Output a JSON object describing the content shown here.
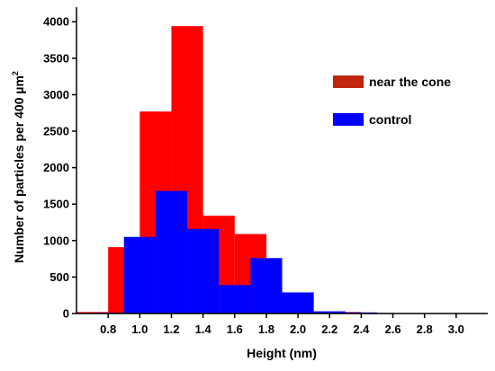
{
  "chart_data": {
    "type": "bar",
    "xlabel": "Height (nm)",
    "ylabel": "Number of particles per 400 µm",
    "ylabel_superscript": "2",
    "ylim": [
      0,
      4200
    ],
    "yticks": [
      0,
      500,
      1000,
      1500,
      2000,
      2500,
      3000,
      3500,
      4000
    ],
    "x_ticks": [
      "0.8",
      "1.0",
      "1.2",
      "1.4",
      "1.6",
      "1.8",
      "2.0",
      "2.2",
      "2.4",
      "2.6",
      "2.8",
      "3.0"
    ],
    "xlim": [
      0.6,
      3.2
    ],
    "bin_width": 0.2,
    "series": [
      {
        "name": "near the cone",
        "color": "#ff0000",
        "bins": [
          {
            "start": 0.6,
            "value": 20
          },
          {
            "start": 0.8,
            "value": 910
          },
          {
            "start": 1.0,
            "value": 2770
          },
          {
            "start": 1.2,
            "value": 3940
          },
          {
            "start": 1.4,
            "value": 1340
          },
          {
            "start": 1.6,
            "value": 1090
          },
          {
            "start": 1.8,
            "value": 220
          },
          {
            "start": 2.0,
            "value": 25
          },
          {
            "start": 2.2,
            "value": 20
          },
          {
            "start": 2.4,
            "value": 8
          }
        ]
      },
      {
        "name": "control",
        "color": "#0000ff",
        "bins": [
          {
            "start": 0.7,
            "value": 10
          },
          {
            "start": 0.9,
            "value": 1050
          },
          {
            "start": 1.1,
            "value": 1680
          },
          {
            "start": 1.3,
            "value": 1160
          },
          {
            "start": 1.5,
            "value": 390
          },
          {
            "start": 1.7,
            "value": 760
          },
          {
            "start": 1.9,
            "value": 290
          },
          {
            "start": 2.1,
            "value": 30
          },
          {
            "start": 2.3,
            "value": 15
          },
          {
            "start": 2.5,
            "value": 5
          }
        ]
      }
    ],
    "legend": {
      "position": "top-right",
      "items": [
        {
          "label": "near the cone",
          "color": "#c0260e"
        },
        {
          "label": "control",
          "color": "#0000ff"
        }
      ]
    }
  }
}
